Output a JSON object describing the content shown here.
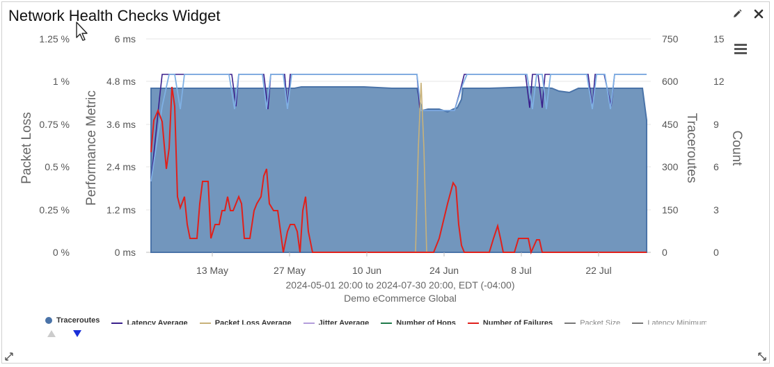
{
  "widget": {
    "title": "Network Health Checks Widget",
    "edit_icon": "pencil-icon",
    "close_icon": "close-icon",
    "menu_icon": "hamburger-menu-icon"
  },
  "chart_data": {
    "type": "area",
    "date_range": "2024-05-01 20:00 to 2024-07-30 20:00, EDT (-04:00)",
    "source": "Demo eCommerce Global",
    "x_ticks": [
      "13 May",
      "27 May",
      "10 Jun",
      "24 Jun",
      "8 Jul",
      "22 Jul"
    ],
    "axes": {
      "packet_loss": {
        "title": "Packet Loss",
        "ticks": [
          "0 %",
          "0.25 %",
          "0.5 %",
          "0.75 %",
          "1 %",
          "1.25 %"
        ],
        "range": [
          0,
          1.25
        ]
      },
      "performance": {
        "title": "Performance Metric",
        "ticks": [
          "0 ms",
          "1.2 ms",
          "2.4 ms",
          "3.6 ms",
          "4.8 ms",
          "6 ms"
        ],
        "range": [
          0,
          6
        ]
      },
      "traceroutes": {
        "title": "Traceroutes",
        "ticks": [
          "0",
          "150",
          "300",
          "450",
          "600",
          "750"
        ],
        "range": [
          0,
          750
        ]
      },
      "count": {
        "title": "Count",
        "ticks": [
          "0",
          "3",
          "6",
          "9",
          "12",
          "15"
        ],
        "range": [
          0,
          15
        ]
      }
    },
    "grid": true,
    "series": [
      {
        "name": "Traceroutes",
        "color": "#4a73a8"
      },
      {
        "name": "Latency Average",
        "color": "#3a1f8c"
      },
      {
        "name": "Packet Loss Average",
        "color": "#c8b27a"
      },
      {
        "name": "Jitter Average",
        "color": "#b39ddb"
      },
      {
        "name": "Number of Hops",
        "color": "#1f7a4a"
      },
      {
        "name": "Number of Failures",
        "color": "#e0201b"
      },
      {
        "name": "Packet Size",
        "color": "#777777"
      },
      {
        "name": "Latency Minimum",
        "color": "#777777"
      }
    ]
  },
  "legend": {
    "items": [
      {
        "label": "Traceroutes",
        "swatch": "dot",
        "color": "#4a73a8",
        "dim": false
      },
      {
        "label": "Latency Average",
        "swatch": "line",
        "color": "#3a1f8c",
        "dim": false
      },
      {
        "label": "Packet Loss Average",
        "swatch": "line",
        "color": "#c8b27a",
        "dim": false
      },
      {
        "label": "Jitter Average",
        "swatch": "line",
        "color": "#b39ddb",
        "dim": false
      },
      {
        "label": "Number of Hops",
        "swatch": "line",
        "color": "#1f7a4a",
        "dim": false
      },
      {
        "label": "Number of Failures",
        "swatch": "line",
        "color": "#e0201b",
        "dim": false
      },
      {
        "label": "Packet Size",
        "swatch": "line",
        "color": "#777777",
        "dim": true
      },
      {
        "label": "Latency Minimum",
        "swatch": "line",
        "color": "#777777",
        "dim": true
      }
    ],
    "prev_arrow": "triangle-up-icon",
    "next_arrow": "triangle-down-icon"
  }
}
